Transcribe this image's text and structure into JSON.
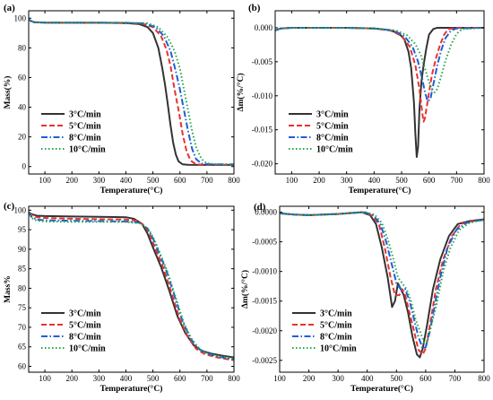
{
  "figure": {
    "panels": [
      "(a)",
      "(b)",
      "(c)",
      "(d)"
    ]
  },
  "chart_data": [
    {
      "label": "(a)",
      "type": "line",
      "xlabel": "Temperature(°C)",
      "ylabel": "Mass(%)",
      "xlim": [
        40,
        800
      ],
      "ylim": [
        -5,
        105
      ],
      "xticks": [
        100,
        200,
        300,
        400,
        500,
        600,
        700,
        800
      ],
      "yticks": [
        0,
        20,
        40,
        60,
        80,
        100
      ],
      "legend_position": "bottom-left",
      "series": [
        {
          "name": "3°C/min",
          "color": "#333333",
          "dash": "solid",
          "x": [
            40,
            50,
            60,
            100,
            200,
            300,
            400,
            450,
            480,
            500,
            520,
            535,
            545,
            555,
            565,
            575,
            585,
            595,
            610,
            630,
            700,
            800
          ],
          "y": [
            99,
            98,
            97.3,
            97,
            96.9,
            96.9,
            96.7,
            96,
            94,
            90,
            80,
            66,
            55,
            42,
            28,
            16,
            8,
            3.5,
            1.5,
            1.2,
            1.1,
            1.1
          ]
        },
        {
          "name": "5°C/min",
          "color": "#e8332b",
          "dash": "dashed",
          "x": [
            40,
            50,
            60,
            100,
            200,
            300,
            400,
            460,
            500,
            530,
            550,
            565,
            580,
            595,
            610,
            625,
            640,
            660,
            700,
            800
          ],
          "y": [
            99,
            98,
            97.3,
            97,
            96.9,
            96.9,
            96.8,
            96.3,
            94,
            88,
            79,
            68,
            52,
            38,
            22,
            10,
            4,
            1.5,
            1.2,
            1.2
          ]
        },
        {
          "name": "8°C/min",
          "color": "#1f5fd6",
          "dash": "dashdot",
          "x": [
            40,
            50,
            60,
            100,
            200,
            300,
            400,
            470,
            510,
            540,
            565,
            585,
            600,
            615,
            630,
            645,
            660,
            680,
            720,
            800
          ],
          "y": [
            99,
            98,
            97.3,
            97,
            97,
            97,
            96.9,
            96.4,
            94,
            88,
            78,
            64,
            52,
            38,
            24,
            12,
            5,
            2,
            1.5,
            1.5
          ]
        },
        {
          "name": "10°C/min",
          "color": "#1fa84a",
          "dash": "dotted",
          "x": [
            40,
            50,
            60,
            100,
            200,
            300,
            400,
            480,
            520,
            555,
            580,
            600,
            615,
            630,
            645,
            660,
            680,
            700,
            740,
            800
          ],
          "y": [
            99,
            98,
            97.3,
            97,
            97,
            97,
            97,
            96.6,
            94,
            87,
            78,
            66,
            52,
            38,
            24,
            13,
            5,
            2.2,
            1.5,
            1.5
          ]
        }
      ]
    },
    {
      "label": "(b)",
      "type": "line",
      "xlabel": "Temperature(°C)",
      "ylabel": "Δm(%/°C)",
      "xlim": [
        40,
        800
      ],
      "ylim": [
        -0.0215,
        0.0025
      ],
      "xticks": [
        100,
        200,
        300,
        400,
        500,
        600,
        700,
        800
      ],
      "yticks": [
        0.0,
        -0.005,
        -0.01,
        -0.015,
        -0.02
      ],
      "ytick_labels": [
        "0.000",
        "-0.005",
        "-0.010",
        "-0.015",
        "-0.020"
      ],
      "legend_position": "bottom-left",
      "series": [
        {
          "name": "3°C/min",
          "color": "#333333",
          "dash": "solid",
          "x": [
            40,
            60,
            100,
            200,
            300,
            400,
            450,
            490,
            510,
            525,
            535,
            545,
            550,
            555,
            560,
            565,
            572,
            580,
            590,
            600,
            615,
            630,
            700,
            800
          ],
          "y": [
            -0.0004,
            -0.0001,
            0.0,
            0.0,
            0.0,
            -0.0001,
            -0.0003,
            -0.0008,
            -0.0017,
            -0.0035,
            -0.006,
            -0.011,
            -0.0155,
            -0.019,
            -0.0175,
            -0.012,
            -0.008,
            -0.0055,
            -0.003,
            -0.001,
            -0.0002,
            0.0,
            0.0,
            0.0
          ]
        },
        {
          "name": "5°C/min",
          "color": "#e8332b",
          "dash": "dashed",
          "x": [
            40,
            60,
            100,
            200,
            300,
            400,
            460,
            500,
            530,
            550,
            565,
            575,
            580,
            585,
            590,
            600,
            610,
            625,
            640,
            655,
            670,
            700,
            800
          ],
          "y": [
            -0.0004,
            -0.0001,
            0.0,
            0.0,
            0.0,
            -0.0001,
            -0.0004,
            -0.0012,
            -0.0028,
            -0.0055,
            -0.009,
            -0.0125,
            -0.0138,
            -0.0133,
            -0.012,
            -0.0095,
            -0.007,
            -0.0045,
            -0.0025,
            -0.001,
            -0.0002,
            0.0,
            0.0
          ]
        },
        {
          "name": "8°C/min",
          "color": "#1f5fd6",
          "dash": "dashdot",
          "x": [
            40,
            60,
            100,
            200,
            300,
            400,
            470,
            510,
            540,
            560,
            575,
            585,
            595,
            605,
            612,
            620,
            630,
            645,
            660,
            680,
            700,
            800
          ],
          "y": [
            -0.0004,
            -0.0001,
            0.0,
            0.0,
            0.0,
            -0.0001,
            -0.0004,
            -0.0012,
            -0.0028,
            -0.005,
            -0.0075,
            -0.0095,
            -0.0108,
            -0.0105,
            -0.009,
            -0.0075,
            -0.0055,
            -0.0032,
            -0.0015,
            -0.0004,
            -0.0001,
            0.0
          ]
        },
        {
          "name": "10°C/min",
          "color": "#1fa84a",
          "dash": "dotted",
          "x": [
            40,
            60,
            100,
            200,
            300,
            400,
            480,
            520,
            550,
            570,
            585,
            600,
            612,
            620,
            630,
            645,
            660,
            680,
            700,
            720,
            800
          ],
          "y": [
            -0.0004,
            -0.0001,
            0.0,
            0.0,
            0.0,
            -0.0001,
            -0.0004,
            -0.0011,
            -0.0024,
            -0.004,
            -0.006,
            -0.008,
            -0.0092,
            -0.0095,
            -0.009,
            -0.007,
            -0.0048,
            -0.0025,
            -0.0009,
            -0.0002,
            0.0
          ]
        }
      ]
    },
    {
      "label": "(c)",
      "type": "line",
      "xlabel": "Temperature(°C)",
      "ylabel": "Mass%",
      "xlim": [
        40,
        800
      ],
      "ylim": [
        58.5,
        101
      ],
      "xticks": [
        100,
        200,
        300,
        400,
        500,
        600,
        700,
        800
      ],
      "yticks": [
        60,
        65,
        70,
        75,
        80,
        85,
        90,
        95,
        100
      ],
      "legend_position": "bottom-left",
      "series": [
        {
          "name": "3°C/min",
          "color": "#333333",
          "dash": "solid",
          "x": [
            40,
            50,
            70,
            100,
            200,
            300,
            400,
            430,
            460,
            480,
            500,
            530,
            560,
            590,
            620,
            650,
            680,
            720,
            760,
            800
          ],
          "y": [
            99.5,
            99,
            98.6,
            98.5,
            98.4,
            98.3,
            98.2,
            97.8,
            96.5,
            94,
            90.5,
            85.5,
            79.5,
            73,
            68.5,
            65.5,
            64,
            63.2,
            62.7,
            62.3
          ]
        },
        {
          "name": "5°C/min",
          "color": "#e8332b",
          "dash": "dashed",
          "x": [
            40,
            50,
            70,
            100,
            200,
            300,
            400,
            440,
            470,
            490,
            510,
            540,
            570,
            600,
            630,
            660,
            690,
            730,
            770,
            800
          ],
          "y": [
            99.5,
            98.8,
            98.2,
            98,
            97.8,
            97.7,
            97.6,
            97.3,
            96,
            93.5,
            90,
            85,
            78.5,
            72,
            67.5,
            64.5,
            63.2,
            62.4,
            61.9,
            61.6
          ]
        },
        {
          "name": "8°C/min",
          "color": "#1f5fd6",
          "dash": "dashdot",
          "x": [
            40,
            50,
            70,
            100,
            200,
            300,
            400,
            450,
            480,
            500,
            520,
            550,
            580,
            610,
            640,
            670,
            700,
            740,
            780,
            800
          ],
          "y": [
            99.5,
            98.3,
            97.6,
            97.4,
            97.3,
            97.2,
            97.1,
            96.8,
            95.3,
            92.8,
            89.5,
            84.5,
            78,
            71.5,
            67,
            64.5,
            63.3,
            62.5,
            62,
            61.8
          ]
        },
        {
          "name": "10°C/min",
          "color": "#1fa84a",
          "dash": "dotted",
          "x": [
            40,
            50,
            70,
            100,
            200,
            300,
            400,
            455,
            485,
            505,
            525,
            555,
            585,
            615,
            645,
            675,
            705,
            745,
            785,
            800
          ],
          "y": [
            99.5,
            98,
            97.3,
            97.1,
            97,
            97,
            97,
            96.6,
            95,
            92.5,
            89.2,
            84,
            77.5,
            71,
            66.8,
            64.3,
            63.3,
            62.6,
            62.2,
            62
          ]
        }
      ]
    },
    {
      "label": "(d)",
      "type": "line",
      "xlabel": "Temperature(°C)",
      "ylabel": "Δm(%/°C)",
      "xlim": [
        100,
        800
      ],
      "ylim": [
        -0.0027,
        0.0001
      ],
      "xticks": [
        100,
        200,
        300,
        400,
        500,
        600,
        700,
        800
      ],
      "yticks": [
        0.0,
        -0.0005,
        -0.001,
        -0.0015,
        -0.002,
        -0.0025
      ],
      "ytick_labels": [
        "0.0000",
        "-0.0005",
        "-0.0010",
        "-0.0015",
        "-0.0020",
        "-0.0025"
      ],
      "legend_position": "bottom-left",
      "series": [
        {
          "name": "3°C/min",
          "color": "#333333",
          "dash": "solid",
          "x": [
            100,
            150,
            200,
            300,
            380,
            410,
            430,
            450,
            470,
            485,
            495,
            505,
            515,
            525,
            540,
            555,
            570,
            580,
            590,
            605,
            625,
            650,
            680,
            710,
            750,
            800
          ],
          "y": [
            -2e-05,
            -4e-05,
            -5e-05,
            -3e-05,
            0.0,
            -5e-05,
            -0.0002,
            -0.0006,
            -0.0011,
            -0.0016,
            -0.0015,
            -0.0012,
            -0.0013,
            -0.0014,
            -0.0017,
            -0.0021,
            -0.0024,
            -0.00245,
            -0.0023,
            -0.0019,
            -0.0013,
            -0.0008,
            -0.0004,
            -0.0002,
            -0.00015,
            -0.00012
          ]
        },
        {
          "name": "5°C/min",
          "color": "#e8332b",
          "dash": "dashed",
          "x": [
            100,
            150,
            200,
            300,
            385,
            415,
            440,
            460,
            480,
            495,
            510,
            520,
            530,
            545,
            560,
            575,
            590,
            600,
            615,
            635,
            660,
            690,
            720,
            760,
            800
          ],
          "y": [
            -2e-05,
            -4e-05,
            -5e-05,
            -3e-05,
            0.0,
            -5e-05,
            -0.0002,
            -0.0006,
            -0.0011,
            -0.0014,
            -0.0014,
            -0.0013,
            -0.0014,
            -0.0017,
            -0.002,
            -0.00232,
            -0.0024,
            -0.0023,
            -0.0019,
            -0.0013,
            -0.0008,
            -0.0004,
            -0.0002,
            -0.00015,
            -0.00013
          ]
        },
        {
          "name": "8°C/min",
          "color": "#1f5fd6",
          "dash": "dashdot",
          "x": [
            100,
            150,
            200,
            300,
            390,
            420,
            445,
            465,
            485,
            500,
            515,
            530,
            545,
            560,
            575,
            590,
            600,
            615,
            630,
            650,
            675,
            705,
            740,
            780,
            800
          ],
          "y": [
            -2e-05,
            -4e-05,
            -5e-05,
            -3e-05,
            0.0,
            -5e-05,
            -0.0002,
            -0.0005,
            -0.0009,
            -0.0012,
            -0.0013,
            -0.0013,
            -0.0015,
            -0.0018,
            -0.0021,
            -0.0023,
            -0.00228,
            -0.002,
            -0.0016,
            -0.0011,
            -0.0006,
            -0.0003,
            -0.00018,
            -0.00014,
            -0.00013
          ]
        },
        {
          "name": "10°C/min",
          "color": "#1fa84a",
          "dash": "dotted",
          "x": [
            100,
            150,
            200,
            300,
            395,
            425,
            450,
            470,
            490,
            505,
            520,
            535,
            550,
            565,
            580,
            595,
            605,
            620,
            640,
            660,
            685,
            715,
            750,
            785,
            800
          ],
          "y": [
            -2e-05,
            -4e-05,
            -5e-05,
            -3e-05,
            0.0,
            -4e-05,
            -0.00018,
            -0.00045,
            -0.0008,
            -0.0011,
            -0.0012,
            -0.0013,
            -0.0015,
            -0.0018,
            -0.002,
            -0.0022,
            -0.0022,
            -0.0019,
            -0.0015,
            -0.001,
            -0.0006,
            -0.0003,
            -0.00018,
            -0.00014,
            -0.00013
          ]
        }
      ]
    }
  ]
}
